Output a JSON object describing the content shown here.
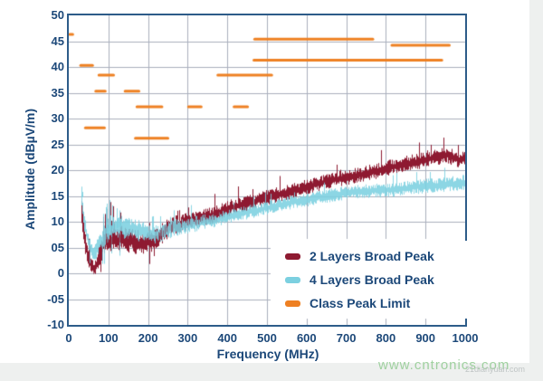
{
  "chart_data": {
    "type": "line",
    "title": "",
    "xlabel": "Frequency (MHz)",
    "ylabel": "Amplitude (dBµV/m)",
    "xlim": [
      0,
      1000
    ],
    "ylim": [
      -10,
      50
    ],
    "grid": true,
    "legend_position": "inside-bottom-center",
    "x_ticks": [
      0,
      100,
      200,
      300,
      400,
      500,
      600,
      700,
      800,
      900,
      1000
    ],
    "x_tick_labels": [
      "0",
      "100",
      "200",
      "300",
      "400",
      "500",
      "600",
      "700",
      "800",
      "900",
      "1000"
    ],
    "y_ticks": [
      50,
      45,
      40,
      35,
      30,
      25,
      20,
      15,
      10,
      5,
      0,
      -5,
      -10
    ],
    "y_tick_labels": [
      "50",
      "45",
      "40",
      "35",
      "30",
      "25",
      "20",
      "15",
      "10",
      "05",
      "0",
      "-05",
      "-10"
    ],
    "axis_color": "#2d5c89",
    "grid_color": "#aab0bd",
    "label_color": "#1c4879",
    "series": [
      {
        "name": "2 Layers Broad Peak",
        "color": "#8e1a31",
        "seed": 1337,
        "start_mhz": 30,
        "anchors": [
          [
            30,
            12
          ],
          [
            34,
            9.5
          ],
          [
            38,
            7.5
          ],
          [
            42,
            5.5
          ],
          [
            46,
            4
          ],
          [
            50,
            3
          ],
          [
            55,
            1.8
          ],
          [
            60,
            1
          ],
          [
            64,
            0.8
          ],
          [
            68,
            1.5
          ],
          [
            72,
            2.5
          ],
          [
            76,
            3.3
          ],
          [
            80,
            4.2
          ],
          [
            85,
            5.2
          ],
          [
            90,
            6
          ],
          [
            95,
            6.3
          ],
          [
            100,
            6.3
          ],
          [
            105,
            6.6
          ],
          [
            110,
            6.5
          ],
          [
            120,
            6.2
          ],
          [
            130,
            6.6
          ],
          [
            140,
            6.3
          ],
          [
            150,
            6.5
          ],
          [
            160,
            6.3
          ],
          [
            170,
            6.1
          ],
          [
            180,
            6.0
          ],
          [
            190,
            6.1
          ],
          [
            200,
            6.2
          ],
          [
            210,
            6.1
          ],
          [
            220,
            6.5
          ],
          [
            230,
            7.3
          ],
          [
            240,
            8.2
          ],
          [
            250,
            8.7
          ],
          [
            260,
            9.1
          ],
          [
            270,
            9.4
          ],
          [
            280,
            9.6
          ],
          [
            300,
            10.0
          ],
          [
            320,
            10.3
          ],
          [
            340,
            10.8
          ],
          [
            360,
            11.2
          ],
          [
            380,
            11.9
          ],
          [
            400,
            12.6
          ],
          [
            420,
            13.0
          ],
          [
            440,
            13.4
          ],
          [
            460,
            13.8
          ],
          [
            480,
            14.2
          ],
          [
            500,
            14.7
          ],
          [
            520,
            15.1
          ],
          [
            540,
            15.5
          ],
          [
            560,
            15.9
          ],
          [
            580,
            16.3
          ],
          [
            600,
            16.8
          ],
          [
            620,
            17.2
          ],
          [
            640,
            17.6
          ],
          [
            660,
            18.0
          ],
          [
            680,
            18.3
          ],
          [
            700,
            18.6
          ],
          [
            720,
            18.9
          ],
          [
            740,
            19.2
          ],
          [
            760,
            19.6
          ],
          [
            780,
            19.9
          ],
          [
            800,
            20.3
          ],
          [
            820,
            20.7
          ],
          [
            840,
            21.1
          ],
          [
            860,
            21.4
          ],
          [
            880,
            21.7
          ],
          [
            900,
            22.0
          ],
          [
            920,
            22.4
          ],
          [
            940,
            22.7
          ],
          [
            955,
            22.9
          ],
          [
            970,
            22.4
          ],
          [
            985,
            22.0
          ],
          [
            1000,
            22.6
          ]
        ],
        "halfwidth": [
          [
            30,
            2.3
          ],
          [
            60,
            1.6
          ],
          [
            90,
            2.2
          ],
          [
            130,
            2.3
          ],
          [
            200,
            1.9
          ],
          [
            260,
            1.7
          ],
          [
            320,
            1.5
          ],
          [
            400,
            1.4
          ],
          [
            500,
            1.3
          ],
          [
            700,
            1.3
          ],
          [
            1000,
            1.4
          ]
        ],
        "peaks": [
          [
            33,
            14
          ],
          [
            92,
            11.5
          ],
          [
            97,
            12.5
          ],
          [
            106,
            13.8
          ],
          [
            112,
            13
          ],
          [
            131,
            11.8
          ]
        ]
      },
      {
        "name": "4 Layers Broad Peak",
        "color": "#7cd0e0",
        "seed": 4242,
        "start_mhz": 30,
        "anchors": [
          [
            30,
            15.5
          ],
          [
            34,
            12.5
          ],
          [
            38,
            10.2
          ],
          [
            42,
            8.3
          ],
          [
            46,
            7.0
          ],
          [
            50,
            6.0
          ],
          [
            55,
            5.0
          ],
          [
            60,
            4.2
          ],
          [
            64,
            3.9
          ],
          [
            68,
            4.3
          ],
          [
            72,
            5.0
          ],
          [
            76,
            5.6
          ],
          [
            80,
            6.2
          ],
          [
            85,
            6.8
          ],
          [
            90,
            7.3
          ],
          [
            95,
            7.7
          ],
          [
            100,
            8.1
          ],
          [
            105,
            8.4
          ],
          [
            110,
            8.7
          ],
          [
            120,
            8.8
          ],
          [
            130,
            9.0
          ],
          [
            140,
            8.9
          ],
          [
            150,
            8.7
          ],
          [
            160,
            8.5
          ],
          [
            170,
            8.3
          ],
          [
            180,
            8.1
          ],
          [
            190,
            7.9
          ],
          [
            200,
            7.7
          ],
          [
            210,
            7.6
          ],
          [
            220,
            7.6
          ],
          [
            230,
            7.8
          ],
          [
            240,
            8.1
          ],
          [
            250,
            8.4
          ],
          [
            260,
            8.7
          ],
          [
            270,
            8.9
          ],
          [
            280,
            9.0
          ],
          [
            300,
            9.3
          ],
          [
            320,
            9.6
          ],
          [
            340,
            9.9
          ],
          [
            360,
            10.2
          ],
          [
            380,
            10.5
          ],
          [
            400,
            11.0
          ],
          [
            420,
            11.3
          ],
          [
            440,
            11.6
          ],
          [
            460,
            12.0
          ],
          [
            480,
            12.3
          ],
          [
            500,
            12.7
          ],
          [
            520,
            13.0
          ],
          [
            540,
            13.4
          ],
          [
            560,
            13.7
          ],
          [
            580,
            14.0
          ],
          [
            600,
            14.2
          ],
          [
            630,
            14.7
          ],
          [
            660,
            15.1
          ],
          [
            700,
            15.6
          ],
          [
            730,
            15.8
          ],
          [
            760,
            16.0
          ],
          [
            800,
            16.1
          ],
          [
            840,
            16.4
          ],
          [
            880,
            16.8
          ],
          [
            920,
            17.0
          ],
          [
            960,
            17.3
          ],
          [
            1000,
            17.6
          ]
        ],
        "halfwidth": [
          [
            30,
            1.6
          ],
          [
            60,
            1.3
          ],
          [
            90,
            2.0
          ],
          [
            130,
            2.2
          ],
          [
            200,
            1.7
          ],
          [
            300,
            1.4
          ],
          [
            400,
            1.2
          ],
          [
            600,
            1.1
          ],
          [
            800,
            1.2
          ],
          [
            1000,
            1.3
          ]
        ],
        "peaks": [
          [
            31,
            16.8
          ],
          [
            95,
            13.5
          ],
          [
            103,
            14.2
          ],
          [
            109,
            13.2
          ],
          [
            120,
            12.6
          ],
          [
            127,
            12.2
          ]
        ]
      }
    ],
    "limits": {
      "name": "Class Peak Limit",
      "color": "#ee8022",
      "segments": [
        [
          0,
          10,
          46.3
        ],
        [
          30,
          60,
          40.3
        ],
        [
          42,
          90,
          28.2
        ],
        [
          68,
          92,
          35.3
        ],
        [
          76,
          113,
          38.4
        ],
        [
          142,
          177,
          35.3
        ],
        [
          168,
          250,
          26.2
        ],
        [
          172,
          235,
          32.3
        ],
        [
          302,
          334,
          32.3
        ],
        [
          376,
          512,
          38.4
        ],
        [
          417,
          451,
          32.3
        ],
        [
          467,
          941,
          41.3
        ],
        [
          469,
          767,
          45.4
        ],
        [
          815,
          960,
          44.2
        ]
      ]
    }
  },
  "watermarks": {
    "green": "www.cntronics.com",
    "gray": "21dianyuan.com"
  }
}
